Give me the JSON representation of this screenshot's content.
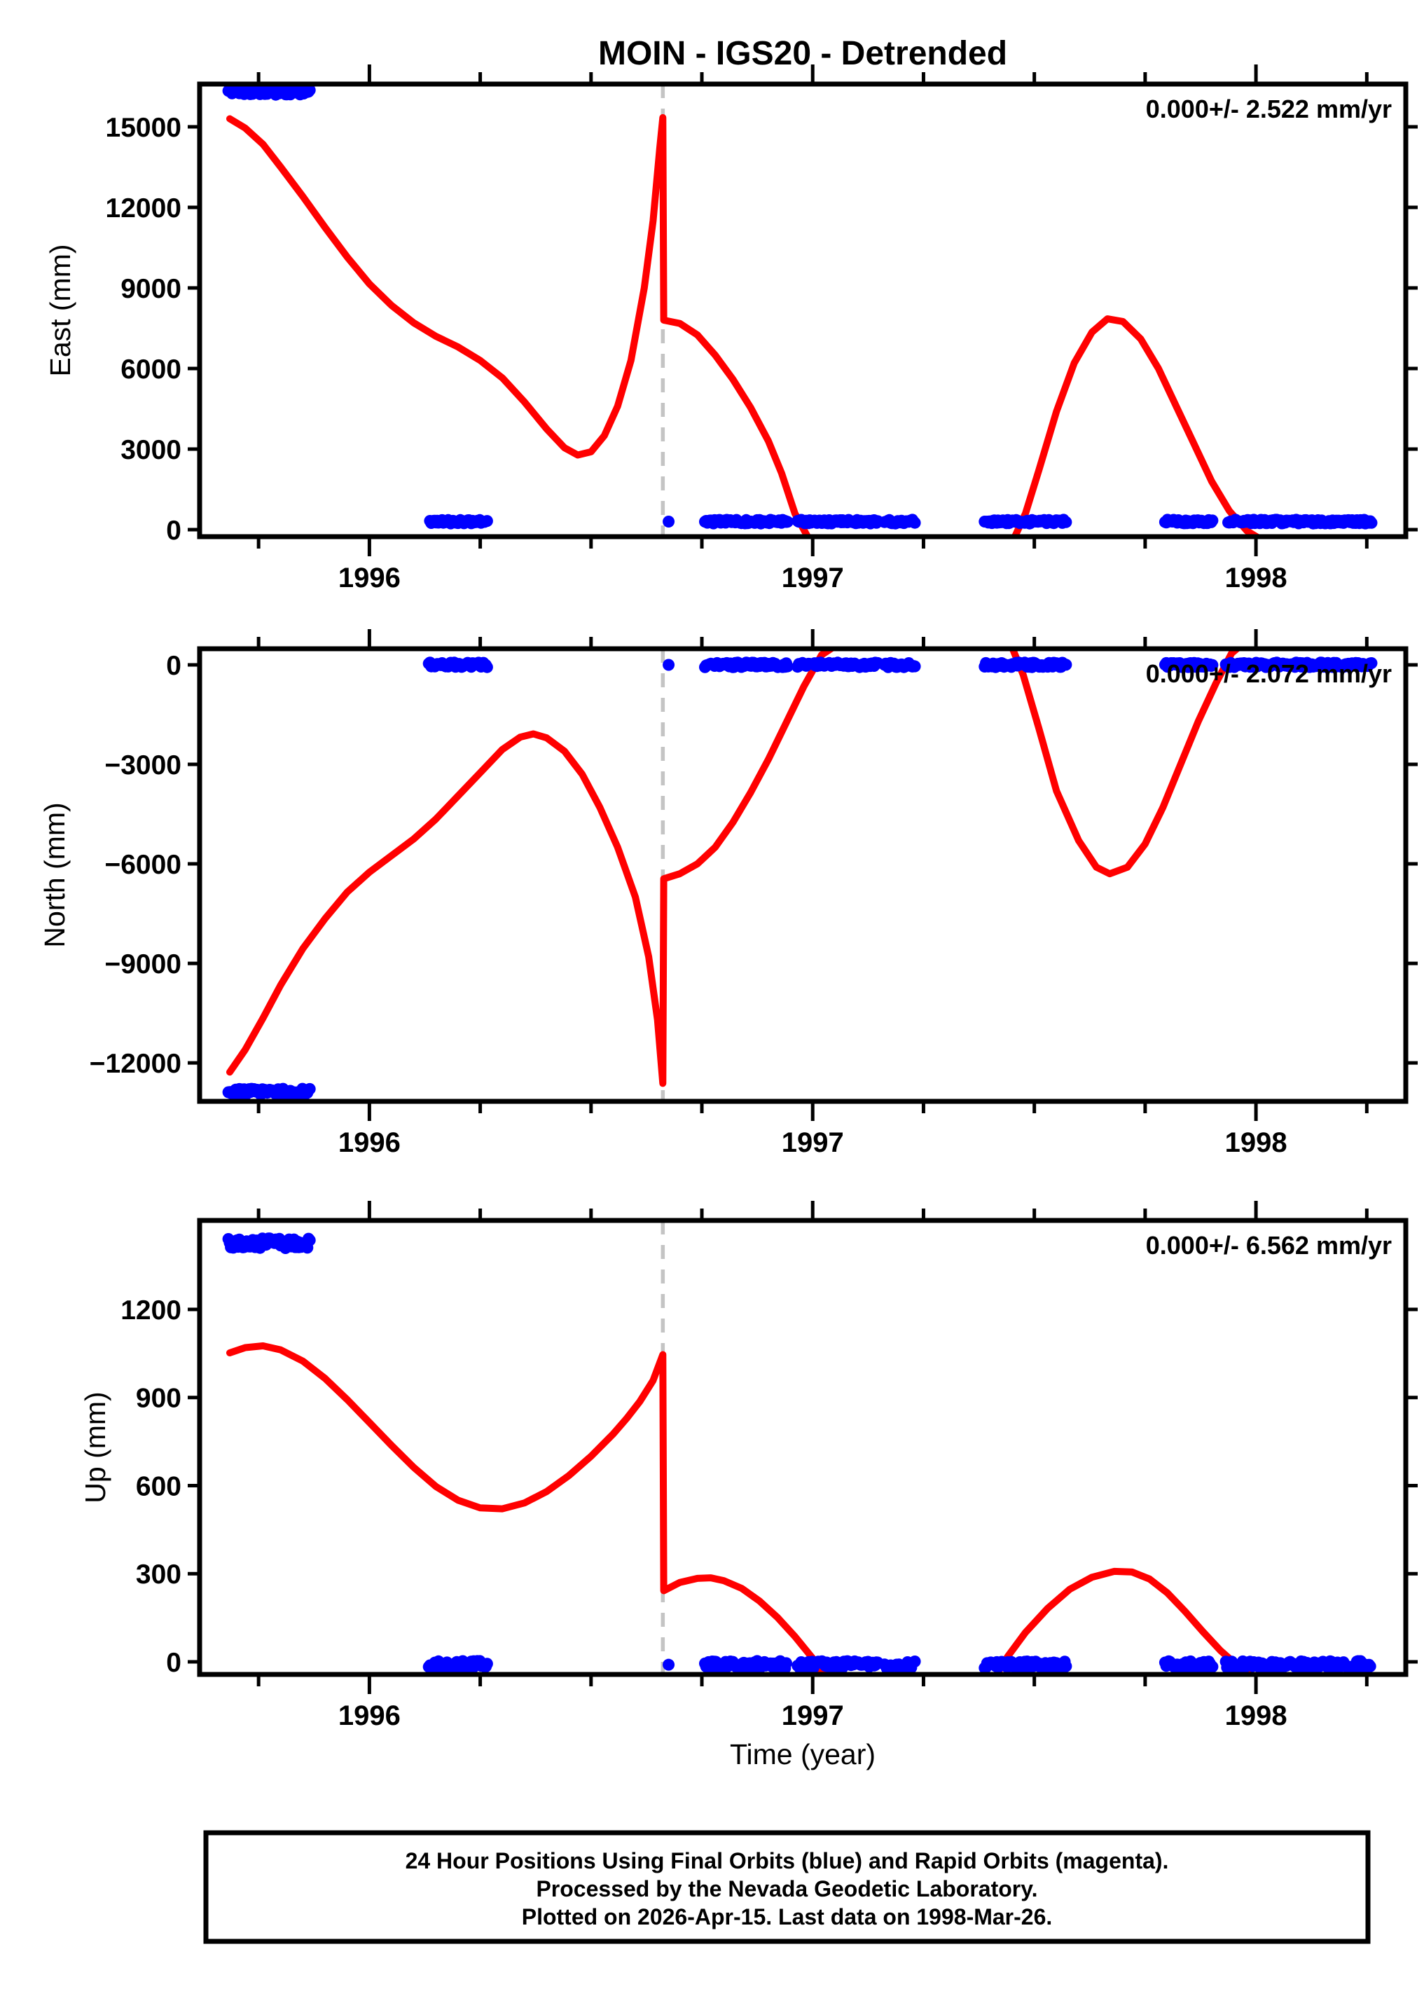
{
  "title": "MOIN - IGS20 - Detrended",
  "caption": {
    "line1": "24 Hour Positions Using Final Orbits (blue) and Rapid Orbits (magenta).",
    "line2": "Processed by the Nevada Geodetic Laboratory.",
    "line3": "Plotted on 2026-Apr-15. Last data on 1998-Mar-26."
  },
  "chart_data": {
    "type": "line",
    "title": "MOIN - IGS20 - Detrended",
    "xlabel": "Time (year)",
    "x_axis": {
      "range": [
        1995.617,
        1998.338
      ],
      "major_ticks": [
        1996,
        1997,
        1998
      ],
      "major_tick_labels": [
        "1996",
        "1997",
        "1998"
      ],
      "minor_tick_step": 0.25
    },
    "event_line_x": 1996.662,
    "colors": {
      "model_curve": "#ff0000",
      "final_orbits": "#0000ff",
      "rapid_orbits": "#ff00ff",
      "event_line": "#c4c4c4",
      "frame": "#000000"
    },
    "data_clusters": [
      {
        "x0": 1995.682,
        "x1": 1995.868,
        "offset": true,
        "single": false
      },
      {
        "x0": 1996.134,
        "x1": 1996.266,
        "offset": false,
        "single": false
      },
      {
        "x0": 1996.675,
        "x1": 1996.675,
        "offset": false,
        "single": true
      },
      {
        "x0": 1996.757,
        "x1": 1996.944,
        "offset": false,
        "single": false
      },
      {
        "x0": 1996.966,
        "x1": 1997.148,
        "offset": false,
        "single": false
      },
      {
        "x0": 1997.162,
        "x1": 1997.232,
        "offset": false,
        "single": false
      },
      {
        "x0": 1997.388,
        "x1": 1997.572,
        "offset": false,
        "single": false
      },
      {
        "x0": 1997.795,
        "x1": 1997.902,
        "offset": false,
        "single": false
      },
      {
        "x0": 1997.932,
        "x1": 1998.262,
        "offset": false,
        "single": false
      }
    ],
    "panels": [
      {
        "id": "east",
        "ylabel": "East (mm)",
        "annotation": "0.000+/- 2.522 mm/yr",
        "ylim": [
          -260,
          16590
        ],
        "yticks": [
          0,
          3000,
          6000,
          9000,
          12000,
          15000
        ],
        "ytick_labels": [
          "0",
          "3000",
          "6000",
          "9000",
          "12000",
          "15000"
        ],
        "residual_level_mm": 300,
        "residual_jitter_mm": 70,
        "offset_cluster_level_mm": 16280,
        "offset_cluster_jitter_mm": 90,
        "model_segments": [
          [
            [
              1995.685,
              15300
            ],
            [
              1995.72,
              14950
            ],
            [
              1995.76,
              14350
            ],
            [
              1995.8,
              13500
            ],
            [
              1995.85,
              12400
            ],
            [
              1995.9,
              11250
            ],
            [
              1995.95,
              10150
            ],
            [
              1996.0,
              9150
            ],
            [
              1996.05,
              8350
            ],
            [
              1996.1,
              7700
            ],
            [
              1996.15,
              7200
            ],
            [
              1996.2,
              6800
            ],
            [
              1996.25,
              6300
            ],
            [
              1996.3,
              5650
            ],
            [
              1996.35,
              4750
            ],
            [
              1996.4,
              3750
            ],
            [
              1996.44,
              3050
            ],
            [
              1996.47,
              2780
            ],
            [
              1996.5,
              2900
            ],
            [
              1996.53,
              3500
            ],
            [
              1996.56,
              4600
            ],
            [
              1996.59,
              6300
            ],
            [
              1996.62,
              9000
            ],
            [
              1996.64,
              11500
            ],
            [
              1996.655,
              14200
            ],
            [
              1996.662,
              15340
            ],
            [
              1996.664,
              7800
            ],
            [
              1996.7,
              7680
            ],
            [
              1996.74,
              7250
            ],
            [
              1996.78,
              6500
            ],
            [
              1996.82,
              5600
            ],
            [
              1996.86,
              4550
            ],
            [
              1996.9,
              3300
            ],
            [
              1996.93,
              2100
            ],
            [
              1996.96,
              600
            ],
            [
              1996.99,
              -300
            ]
          ],
          [
            [
              1997.455,
              -300
            ],
            [
              1997.48,
              600
            ],
            [
              1997.51,
              2200
            ],
            [
              1997.55,
              4400
            ],
            [
              1997.59,
              6200
            ],
            [
              1997.63,
              7350
            ],
            [
              1997.665,
              7850
            ],
            [
              1997.7,
              7750
            ],
            [
              1997.74,
              7100
            ],
            [
              1997.78,
              6000
            ],
            [
              1997.82,
              4600
            ],
            [
              1997.86,
              3200
            ],
            [
              1997.9,
              1800
            ],
            [
              1997.94,
              700
            ],
            [
              1997.98,
              -50
            ],
            [
              1998.005,
              -300
            ]
          ]
        ]
      },
      {
        "id": "north",
        "ylabel": "North (mm)",
        "annotation": "0.000+/- 2.072 mm/yr",
        "ylim": [
          -13160,
          486
        ],
        "yticks": [
          0,
          -3000,
          -6000,
          -9000,
          -12000
        ],
        "ytick_labels": [
          "0",
          "−3000",
          "−6000",
          "−9000",
          "−12000"
        ],
        "residual_level_mm": 0,
        "residual_jitter_mm": 70,
        "offset_cluster_level_mm": -12870,
        "offset_cluster_jitter_mm": 90,
        "model_segments": [
          [
            [
              1995.685,
              -12280
            ],
            [
              1995.72,
              -11600
            ],
            [
              1995.76,
              -10650
            ],
            [
              1995.8,
              -9650
            ],
            [
              1995.85,
              -8550
            ],
            [
              1995.9,
              -7650
            ],
            [
              1995.95,
              -6850
            ],
            [
              1996.0,
              -6250
            ],
            [
              1996.05,
              -5750
            ],
            [
              1996.1,
              -5250
            ],
            [
              1996.15,
              -4650
            ],
            [
              1996.2,
              -3950
            ],
            [
              1996.25,
              -3250
            ],
            [
              1996.3,
              -2550
            ],
            [
              1996.34,
              -2180
            ],
            [
              1996.37,
              -2080
            ],
            [
              1996.4,
              -2200
            ],
            [
              1996.44,
              -2600
            ],
            [
              1996.48,
              -3300
            ],
            [
              1996.52,
              -4300
            ],
            [
              1996.56,
              -5500
            ],
            [
              1996.6,
              -7000
            ],
            [
              1996.63,
              -8800
            ],
            [
              1996.65,
              -10700
            ],
            [
              1996.662,
              -12620
            ],
            [
              1996.664,
              -6450
            ],
            [
              1996.7,
              -6300
            ],
            [
              1996.74,
              -6000
            ],
            [
              1996.78,
              -5500
            ],
            [
              1996.82,
              -4750
            ],
            [
              1996.86,
              -3850
            ],
            [
              1996.9,
              -2850
            ],
            [
              1996.94,
              -1750
            ],
            [
              1996.98,
              -650
            ],
            [
              1997.02,
              300
            ],
            [
              1997.045,
              520
            ]
          ],
          [
            [
              1997.45,
              520
            ],
            [
              1997.475,
              -300
            ],
            [
              1997.51,
              -1900
            ],
            [
              1997.55,
              -3800
            ],
            [
              1997.6,
              -5300
            ],
            [
              1997.64,
              -6100
            ],
            [
              1997.67,
              -6300
            ],
            [
              1997.71,
              -6100
            ],
            [
              1997.75,
              -5400
            ],
            [
              1997.79,
              -4300
            ],
            [
              1997.83,
              -3000
            ],
            [
              1997.87,
              -1700
            ],
            [
              1997.91,
              -550
            ],
            [
              1997.945,
              350
            ],
            [
              1997.96,
              520
            ]
          ]
        ]
      },
      {
        "id": "up",
        "ylabel": "Up (mm)",
        "annotation": "0.000+/- 6.562 mm/yr",
        "ylim": [
          -43,
          1503
        ],
        "yticks": [
          0,
          300,
          600,
          900,
          1200
        ],
        "ytick_labels": [
          "0",
          "300",
          "600",
          "900",
          "1200"
        ],
        "residual_level_mm": -10,
        "residual_jitter_mm": 13,
        "offset_cluster_level_mm": 1425,
        "offset_cluster_jitter_mm": 17,
        "model_segments": [
          [
            [
              1995.685,
              1052
            ],
            [
              1995.72,
              1070
            ],
            [
              1995.76,
              1076
            ],
            [
              1995.8,
              1062
            ],
            [
              1995.85,
              1024
            ],
            [
              1995.9,
              965
            ],
            [
              1995.95,
              893
            ],
            [
              1996.0,
              815
            ],
            [
              1996.05,
              737
            ],
            [
              1996.1,
              662
            ],
            [
              1996.15,
              597
            ],
            [
              1996.2,
              550
            ],
            [
              1996.25,
              524
            ],
            [
              1996.3,
              521
            ],
            [
              1996.35,
              541
            ],
            [
              1996.4,
              580
            ],
            [
              1996.45,
              634
            ],
            [
              1996.5,
              700
            ],
            [
              1996.55,
              776
            ],
            [
              1996.58,
              828
            ],
            [
              1996.61,
              886
            ],
            [
              1996.64,
              958
            ],
            [
              1996.662,
              1046
            ],
            [
              1996.664,
              242
            ],
            [
              1996.7,
              270
            ],
            [
              1996.74,
              284
            ],
            [
              1996.77,
              286
            ],
            [
              1996.8,
              276
            ],
            [
              1996.84,
              250
            ],
            [
              1996.88,
              207
            ],
            [
              1996.92,
              152
            ],
            [
              1996.96,
              86
            ],
            [
              1997.0,
              12
            ],
            [
              1997.03,
              -55
            ]
          ],
          [
            [
              1997.41,
              -55
            ],
            [
              1997.44,
              18
            ],
            [
              1997.48,
              100
            ],
            [
              1997.53,
              182
            ],
            [
              1997.58,
              247
            ],
            [
              1997.63,
              288
            ],
            [
              1997.68,
              308
            ],
            [
              1997.72,
              306
            ],
            [
              1997.76,
              282
            ],
            [
              1997.8,
              235
            ],
            [
              1997.84,
              172
            ],
            [
              1997.88,
              103
            ],
            [
              1997.92,
              38
            ],
            [
              1997.96,
              -15
            ],
            [
              1998.0,
              -55
            ]
          ]
        ]
      }
    ]
  }
}
